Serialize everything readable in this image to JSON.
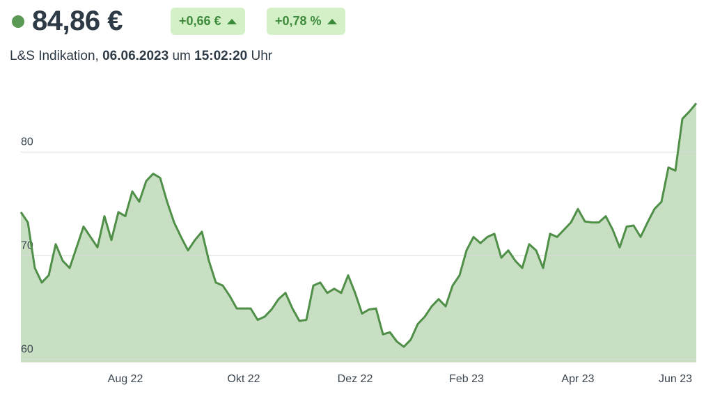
{
  "header": {
    "price": "84,86 €",
    "change_abs": "+0,66 €",
    "change_pct": "+0,78 %",
    "indication": {
      "label": "L&S Indikation,",
      "date": "06.06.2023",
      "um": "um",
      "time": "15:02:20",
      "uhr": "Uhr"
    }
  },
  "chart_data": {
    "type": "area",
    "categories": [
      null,
      null,
      null,
      null,
      null,
      null,
      null,
      null,
      null,
      null,
      null,
      null,
      null,
      null,
      null,
      "Aug 22",
      null,
      null,
      null,
      null,
      null,
      null,
      null,
      null,
      null,
      null,
      null,
      null,
      null,
      null,
      null,
      null,
      "Okt 22",
      null,
      null,
      null,
      null,
      null,
      null,
      null,
      null,
      null,
      null,
      null,
      null,
      null,
      null,
      null,
      "Dez 22",
      null,
      null,
      null,
      null,
      null,
      null,
      null,
      null,
      null,
      null,
      null,
      null,
      null,
      null,
      null,
      "Feb 23",
      null,
      null,
      null,
      null,
      null,
      null,
      null,
      null,
      null,
      null,
      null,
      null,
      null,
      null,
      null,
      "Apr 23",
      null,
      null,
      null,
      null,
      null,
      null,
      null,
      null,
      null,
      null,
      null,
      null,
      null,
      "Jun 23",
      null,
      null,
      null
    ],
    "values": [
      74.2,
      73.2,
      68.8,
      67.4,
      68.1,
      71.1,
      69.5,
      68.8,
      70.8,
      72.8,
      71.8,
      70.8,
      73.8,
      71.5,
      74.2,
      73.8,
      76.2,
      75.2,
      77.2,
      77.9,
      77.5,
      75.2,
      73.2,
      71.8,
      70.5,
      71.5,
      72.3,
      69.5,
      67.4,
      67.1,
      66.1,
      64.9,
      64.9,
      64.9,
      63.8,
      64.1,
      64.8,
      65.8,
      66.4,
      64.9,
      63.7,
      63.8,
      67.1,
      67.4,
      66.4,
      66.8,
      66.4,
      68.1,
      66.4,
      64.4,
      64.8,
      64.9,
      62.4,
      62.6,
      61.7,
      61.2,
      61.9,
      63.4,
      64.1,
      65.1,
      65.8,
      65.1,
      67.1,
      68.1,
      70.5,
      71.8,
      71.2,
      71.8,
      72.1,
      69.8,
      70.5,
      69.5,
      68.8,
      71.1,
      70.5,
      68.8,
      72.1,
      71.8,
      72.5,
      73.2,
      74.5,
      73.3,
      73.2,
      73.2,
      73.8,
      72.5,
      70.8,
      72.8,
      72.9,
      71.8,
      73.2,
      74.5,
      75.2,
      78.5,
      78.2,
      83.2,
      83.9,
      84.7
    ],
    "color": "#4f8f48",
    "fill_color": "#c9dfc4",
    "ylim": [
      59.7,
      86
    ],
    "yticks": [
      60,
      70,
      80
    ],
    "grid": true
  }
}
